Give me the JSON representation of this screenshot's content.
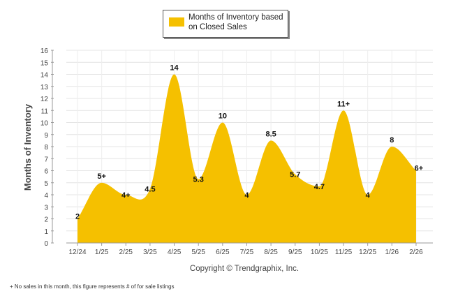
{
  "chart_data": {
    "type": "area",
    "categories": [
      "12/24",
      "1/25",
      "2/25",
      "3/25",
      "4/25",
      "5/25",
      "6/25",
      "7/25",
      "8/25",
      "9/25",
      "10/25",
      "11/25",
      "12/25",
      "1/26",
      "2/26"
    ],
    "series": [
      {
        "name": "Months of Inventory based on Closed Sales",
        "values": [
          2,
          5,
          4,
          4.5,
          14,
          5.3,
          10,
          4,
          8.5,
          5.7,
          4.7,
          11,
          4,
          8,
          6
        ],
        "labels": [
          "2",
          "5+",
          "4+",
          "4.5",
          "14",
          "5.3",
          "10",
          "4",
          "8.5",
          "5.7",
          "4.7",
          "11+",
          "4",
          "8",
          "6+"
        ],
        "color": "#F5C000"
      }
    ],
    "ylabel": "Months of Inventory",
    "xlabel": "",
    "ylim": [
      0,
      16
    ],
    "yticks": [
      0,
      1,
      2,
      3,
      4,
      5,
      6,
      7,
      8,
      9,
      10,
      11,
      12,
      13,
      14,
      15,
      16
    ],
    "grid": true,
    "legend": "top-center",
    "copyright": "Copyright © Trendgraphix, Inc."
  },
  "legend": {
    "label": "Months of Inventory based on Closed Sales"
  },
  "footnote": "+  No sales in this month, this figure represents # of for sale listings",
  "colors": {
    "fill": "#F5C000",
    "grid": "#E4E4E4",
    "axis": "#999999"
  }
}
